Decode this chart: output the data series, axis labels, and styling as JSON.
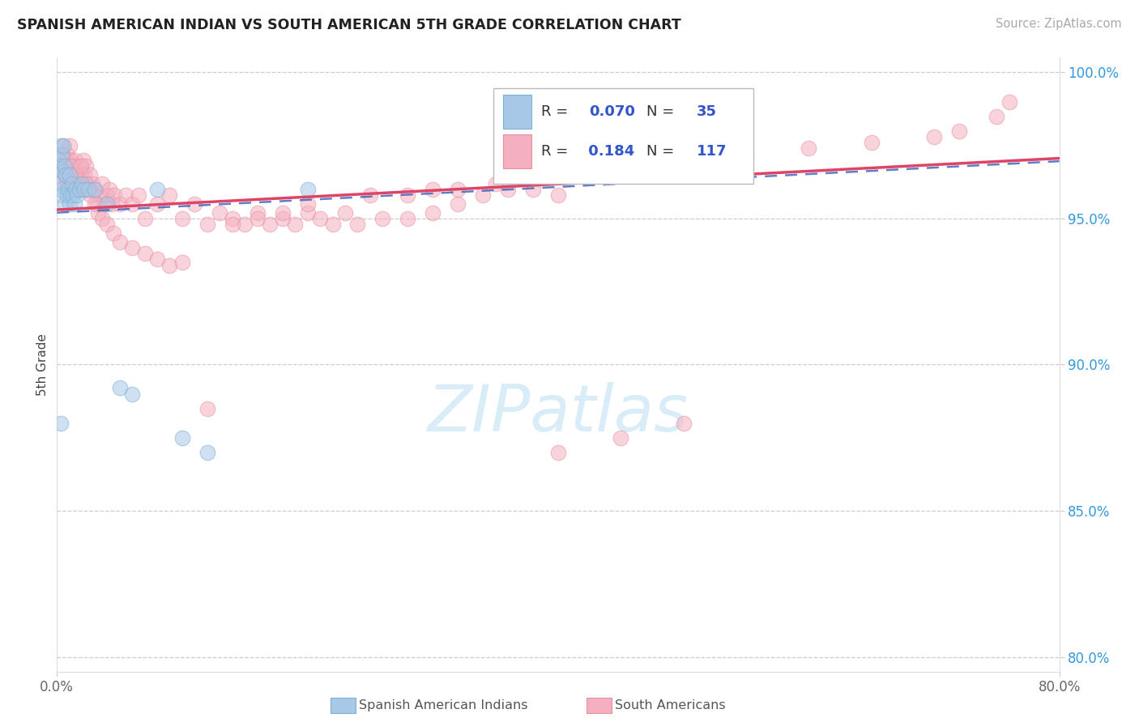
{
  "title": "SPANISH AMERICAN INDIAN VS SOUTH AMERICAN 5TH GRADE CORRELATION CHART",
  "source": "Source: ZipAtlas.com",
  "ylabel": "5th Grade",
  "xlim": [
    0.0,
    0.8
  ],
  "ylim": [
    0.795,
    1.005
  ],
  "ytick_vals": [
    0.8,
    0.85,
    0.9,
    0.95,
    1.0
  ],
  "ytick_labels": [
    "80.0%",
    "85.0%",
    "90.0%",
    "95.0%",
    "100.0%"
  ],
  "blue_color": "#A8C8E8",
  "blue_edge": "#7BAFD4",
  "pink_color": "#F4B0C0",
  "pink_edge": "#E890A0",
  "trend_blue_color": "#4466BB",
  "trend_pink_color": "#DD4466",
  "watermark_text": "ZIPatlas",
  "watermark_color": "#D8EDF8",
  "r_blue": "0.070",
  "n_blue": "35",
  "r_pink": "0.184",
  "n_pink": "117",
  "blue_x": [
    0.001,
    0.002,
    0.002,
    0.003,
    0.003,
    0.004,
    0.004,
    0.005,
    0.005,
    0.006,
    0.006,
    0.007,
    0.008,
    0.009,
    0.01,
    0.01,
    0.011,
    0.012,
    0.013,
    0.014,
    0.015,
    0.016,
    0.018,
    0.02,
    0.022,
    0.025,
    0.03,
    0.04,
    0.05,
    0.06,
    0.08,
    0.1,
    0.12,
    0.2,
    0.003
  ],
  "blue_y": [
    0.97,
    0.968,
    0.962,
    0.975,
    0.96,
    0.972,
    0.958,
    0.975,
    0.966,
    0.968,
    0.955,
    0.965,
    0.958,
    0.96,
    0.965,
    0.955,
    0.958,
    0.962,
    0.958,
    0.955,
    0.96,
    0.958,
    0.96,
    0.962,
    0.96,
    0.96,
    0.96,
    0.955,
    0.892,
    0.89,
    0.96,
    0.875,
    0.87,
    0.96,
    0.88
  ],
  "pink_x": [
    0.004,
    0.005,
    0.005,
    0.006,
    0.007,
    0.007,
    0.008,
    0.008,
    0.009,
    0.01,
    0.01,
    0.011,
    0.012,
    0.012,
    0.013,
    0.014,
    0.015,
    0.015,
    0.016,
    0.017,
    0.018,
    0.019,
    0.02,
    0.021,
    0.022,
    0.023,
    0.024,
    0.025,
    0.026,
    0.028,
    0.03,
    0.032,
    0.034,
    0.036,
    0.038,
    0.04,
    0.042,
    0.044,
    0.046,
    0.05,
    0.055,
    0.06,
    0.065,
    0.07,
    0.08,
    0.09,
    0.1,
    0.11,
    0.12,
    0.13,
    0.14,
    0.15,
    0.16,
    0.17,
    0.18,
    0.19,
    0.2,
    0.21,
    0.22,
    0.23,
    0.24,
    0.26,
    0.28,
    0.3,
    0.32,
    0.34,
    0.36,
    0.38,
    0.4,
    0.005,
    0.007,
    0.009,
    0.011,
    0.013,
    0.015,
    0.017,
    0.019,
    0.021,
    0.023,
    0.025,
    0.027,
    0.03,
    0.033,
    0.036,
    0.04,
    0.045,
    0.05,
    0.06,
    0.07,
    0.08,
    0.09,
    0.1,
    0.12,
    0.14,
    0.16,
    0.18,
    0.2,
    0.25,
    0.3,
    0.35,
    0.4,
    0.45,
    0.5,
    0.55,
    0.6,
    0.65,
    0.7,
    0.72,
    0.75,
    0.76,
    0.4,
    0.45,
    0.5,
    0.28,
    0.32,
    0.36,
    0.42
  ],
  "pink_y": [
    0.972,
    0.975,
    0.965,
    0.968,
    0.97,
    0.962,
    0.972,
    0.965,
    0.968,
    0.975,
    0.962,
    0.97,
    0.968,
    0.96,
    0.965,
    0.968,
    0.97,
    0.962,
    0.965,
    0.96,
    0.968,
    0.965,
    0.962,
    0.97,
    0.965,
    0.968,
    0.962,
    0.96,
    0.965,
    0.962,
    0.96,
    0.955,
    0.958,
    0.962,
    0.955,
    0.958,
    0.96,
    0.955,
    0.958,
    0.955,
    0.958,
    0.955,
    0.958,
    0.95,
    0.955,
    0.958,
    0.95,
    0.955,
    0.948,
    0.952,
    0.95,
    0.948,
    0.952,
    0.948,
    0.95,
    0.948,
    0.952,
    0.95,
    0.948,
    0.952,
    0.948,
    0.95,
    0.95,
    0.952,
    0.955,
    0.958,
    0.96,
    0.96,
    0.958,
    0.968,
    0.965,
    0.962,
    0.968,
    0.96,
    0.965,
    0.962,
    0.968,
    0.96,
    0.962,
    0.96,
    0.958,
    0.955,
    0.952,
    0.95,
    0.948,
    0.945,
    0.942,
    0.94,
    0.938,
    0.936,
    0.934,
    0.935,
    0.885,
    0.948,
    0.95,
    0.952,
    0.955,
    0.958,
    0.96,
    0.962,
    0.965,
    0.968,
    0.97,
    0.972,
    0.974,
    0.976,
    0.978,
    0.98,
    0.985,
    0.99,
    0.87,
    0.875,
    0.88,
    0.958,
    0.96,
    0.965,
    0.968
  ]
}
